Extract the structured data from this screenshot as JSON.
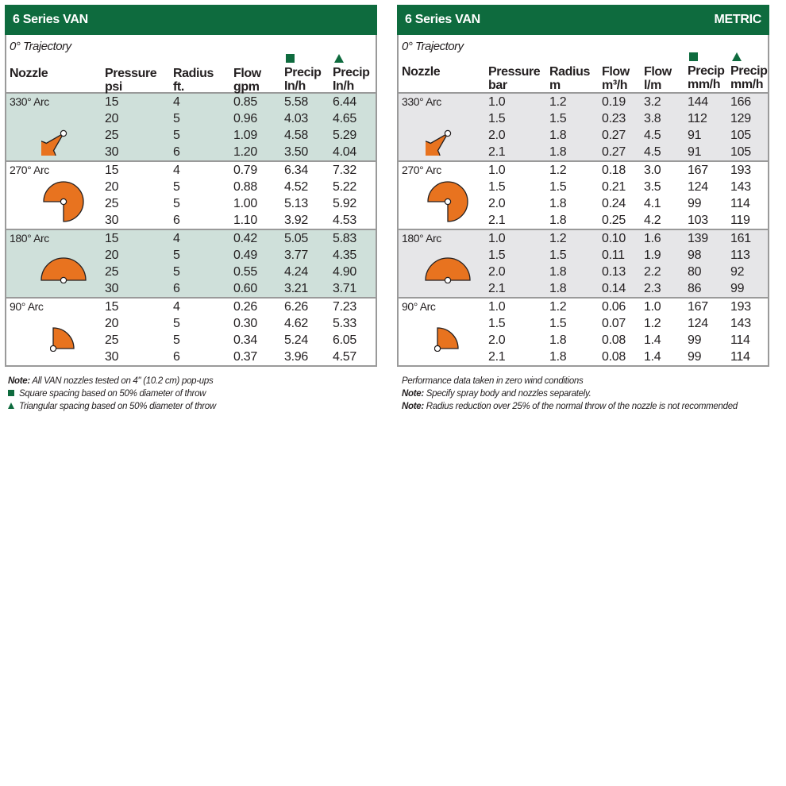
{
  "left": {
    "title": "6 Series VAN",
    "trajectory": "0° Trajectory",
    "headers": {
      "nozzle": "Nozzle",
      "pressure": [
        "Pressure",
        "psi"
      ],
      "radius": [
        "Radius",
        "ft."
      ],
      "flow": [
        "Flow",
        "gpm"
      ],
      "precip_sq": [
        "Precip",
        "In/h"
      ],
      "precip_tri": [
        "Precip",
        "In/h"
      ]
    },
    "groups": [
      {
        "label": "330° Arc",
        "arc": 330,
        "rows": [
          [
            "15",
            "4",
            "0.85",
            "5.58",
            "6.44"
          ],
          [
            "20",
            "5",
            "0.96",
            "4.03",
            "4.65"
          ],
          [
            "25",
            "5",
            "1.09",
            "4.58",
            "5.29"
          ],
          [
            "30",
            "6",
            "1.20",
            "3.50",
            "4.04"
          ]
        ]
      },
      {
        "label": "270° Arc",
        "arc": 270,
        "rows": [
          [
            "15",
            "4",
            "0.79",
            "6.34",
            "7.32"
          ],
          [
            "20",
            "5",
            "0.88",
            "4.52",
            "5.22"
          ],
          [
            "25",
            "5",
            "1.00",
            "5.13",
            "5.92"
          ],
          [
            "30",
            "6",
            "1.10",
            "3.92",
            "4.53"
          ]
        ]
      },
      {
        "label": "180° Arc",
        "arc": 180,
        "rows": [
          [
            "15",
            "4",
            "0.42",
            "5.05",
            "5.83"
          ],
          [
            "20",
            "5",
            "0.49",
            "3.77",
            "4.35"
          ],
          [
            "25",
            "5",
            "0.55",
            "4.24",
            "4.90"
          ],
          [
            "30",
            "6",
            "0.60",
            "3.21",
            "3.71"
          ]
        ]
      },
      {
        "label": "90° Arc",
        "arc": 90,
        "rows": [
          [
            "15",
            "4",
            "0.26",
            "6.26",
            "7.23"
          ],
          [
            "20",
            "5",
            "0.30",
            "4.62",
            "5.33"
          ],
          [
            "25",
            "5",
            "0.34",
            "5.24",
            "6.05"
          ],
          [
            "30",
            "6",
            "0.37",
            "3.96",
            "4.57"
          ]
        ]
      }
    ],
    "notes": {
      "note_label": "Note:",
      "note_text": " All VAN nozzles tested on 4\" (10.2 cm) pop-ups",
      "square_text": "Square spacing based on 50% diameter of throw",
      "triangle_text": "Triangular spacing based on 50% diameter of throw"
    }
  },
  "right": {
    "title": "6 Series VAN",
    "metric_label": "METRIC",
    "trajectory": "0° Trajectory",
    "headers": {
      "nozzle": "Nozzle",
      "pressure": [
        "Pressure",
        "bar"
      ],
      "radius": [
        "Radius",
        "m"
      ],
      "flow_m3": [
        "Flow",
        "m³/h"
      ],
      "flow_l": [
        "Flow",
        "l/m"
      ],
      "precip_sq": [
        "Precip",
        "mm/h"
      ],
      "precip_tri": [
        "Precip",
        "mm/h"
      ]
    },
    "groups": [
      {
        "label": "330° Arc",
        "arc": 330,
        "rows": [
          [
            "1.0",
            "1.2",
            "0.19",
            "3.2",
            "144",
            "166"
          ],
          [
            "1.5",
            "1.5",
            "0.23",
            "3.8",
            "112",
            "129"
          ],
          [
            "2.0",
            "1.8",
            "0.27",
            "4.5",
            "91",
            "105"
          ],
          [
            "2.1",
            "1.8",
            "0.27",
            "4.5",
            "91",
            "105"
          ]
        ]
      },
      {
        "label": "270° Arc",
        "arc": 270,
        "rows": [
          [
            "1.0",
            "1.2",
            "0.18",
            "3.0",
            "167",
            "193"
          ],
          [
            "1.5",
            "1.5",
            "0.21",
            "3.5",
            "124",
            "143"
          ],
          [
            "2.0",
            "1.8",
            "0.24",
            "4.1",
            "99",
            "114"
          ],
          [
            "2.1",
            "1.8",
            "0.25",
            "4.2",
            "103",
            "119"
          ]
        ]
      },
      {
        "label": "180° Arc",
        "arc": 180,
        "rows": [
          [
            "1.0",
            "1.2",
            "0.10",
            "1.6",
            "139",
            "161"
          ],
          [
            "1.5",
            "1.5",
            "0.11",
            "1.9",
            "98",
            "113"
          ],
          [
            "2.0",
            "1.8",
            "0.13",
            "2.2",
            "80",
            "92"
          ],
          [
            "2.1",
            "1.8",
            "0.14",
            "2.3",
            "86",
            "99"
          ]
        ]
      },
      {
        "label": "90° Arc",
        "arc": 90,
        "rows": [
          [
            "1.0",
            "1.2",
            "0.06",
            "1.0",
            "167",
            "193"
          ],
          [
            "1.5",
            "1.5",
            "0.07",
            "1.2",
            "124",
            "143"
          ],
          [
            "2.0",
            "1.8",
            "0.08",
            "1.4",
            "99",
            "114"
          ],
          [
            "2.1",
            "1.8",
            "0.08",
            "1.4",
            "99",
            "114"
          ]
        ]
      }
    ],
    "notes": {
      "line1": "Performance data taken in zero wind conditions",
      "note2_label": "Note:",
      "note2_text": " Specify spray body and nozzles separately.",
      "note3_label": "Note:",
      "note3_text": " Radius reduction over 25% of the normal throw of the nozzle is not recommended"
    }
  },
  "colors": {
    "header_green": "#0e6b3e",
    "arc_orange": "#e8731f",
    "shade_green": "#cfe0da",
    "shade_gray": "#e6e6e8"
  }
}
